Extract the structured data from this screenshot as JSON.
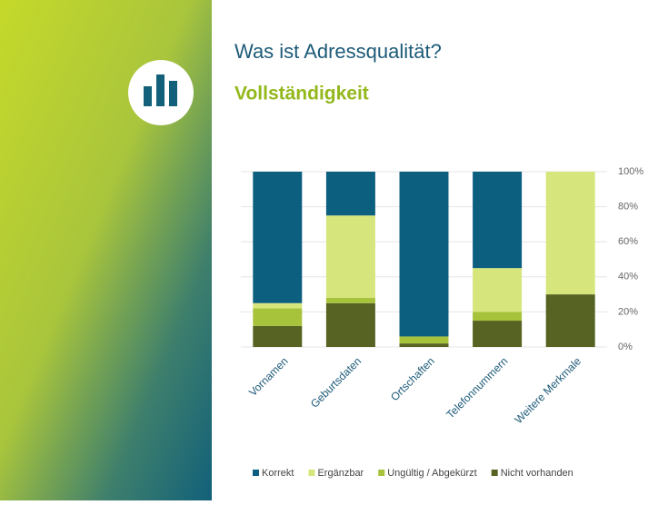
{
  "chart_data": {
    "type": "stacked_bar",
    "title": "Was ist Adressqualität?",
    "subtitle": "Vollständigkeit",
    "categories": [
      "Vornamen",
      "Geburtsdaten",
      "Ortschaften",
      "Telefonnummern",
      "Weitere Merkmale"
    ],
    "series": [
      {
        "name": "Korrekt",
        "color": "#0d5f7f",
        "values": [
          75,
          25,
          94,
          55,
          0
        ]
      },
      {
        "name": "Ergänzbar",
        "color": "#d6e67c",
        "values": [
          3,
          47,
          0,
          25,
          70
        ]
      },
      {
        "name": "Ungültig / Abgekürzt",
        "color": "#a7c23b",
        "values": [
          10,
          3,
          4,
          5,
          0
        ]
      },
      {
        "name": "Nicht vorhanden",
        "color": "#566322",
        "values": [
          12,
          25,
          2,
          15,
          30
        ]
      }
    ],
    "ylim": [
      0,
      100
    ],
    "yticks": [
      {
        "value": 0,
        "label": "0%"
      },
      {
        "value": 20,
        "label": "20%"
      },
      {
        "value": 40,
        "label": "40%"
      },
      {
        "value": 60,
        "label": "60%"
      },
      {
        "value": 80,
        "label": "80%"
      },
      {
        "value": 100,
        "label": "100%"
      }
    ],
    "legend": "bottom"
  }
}
